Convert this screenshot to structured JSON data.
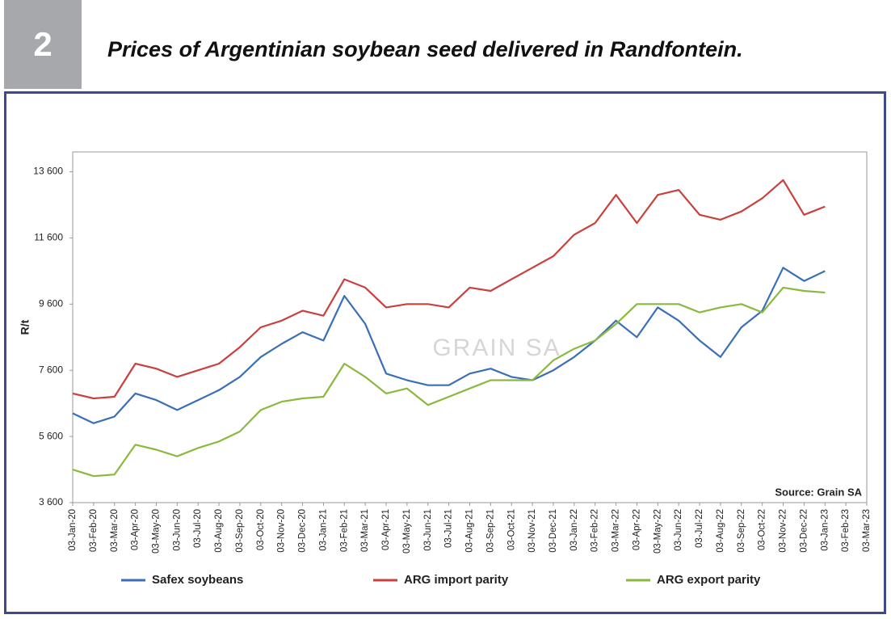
{
  "badge": "2",
  "chart_data": {
    "type": "line",
    "title": "Prices of Argentinian soybean seed delivered in Randfontein.",
    "y_label": "R/t",
    "annotation": "Source: Grain SA",
    "watermark": "GRAIN SA",
    "x": [
      "03-Jan-20",
      "03-Feb-20",
      "03-Mar-20",
      "03-Apr-20",
      "03-May-20",
      "03-Jun-20",
      "03-Jul-20",
      "03-Aug-20",
      "03-Sep-20",
      "03-Oct-20",
      "03-Nov-20",
      "03-Dec-20",
      "03-Jan-21",
      "03-Feb-21",
      "03-Mar-21",
      "03-Apr-21",
      "03-May-21",
      "03-Jun-21",
      "03-Jul-21",
      "03-Aug-21",
      "03-Sep-21",
      "03-Oct-21",
      "03-Nov-21",
      "03-Dec-21",
      "03-Jan-22",
      "03-Feb-22",
      "03-Mar-22",
      "03-Apr-22",
      "03-May-22",
      "03-Jun-22",
      "03-Jul-22",
      "03-Aug-22",
      "03-Sep-22",
      "03-Oct-22",
      "03-Nov-22",
      "03-Dec-22",
      "03-Jan-23",
      "03-Feb-23",
      "03-Mar-23"
    ],
    "series": [
      {
        "name": "Safex soybeans",
        "color": "#3a6fb7",
        "values": [
          6300,
          6000,
          6200,
          6900,
          6700,
          6400,
          6700,
          7000,
          7400,
          8000,
          8400,
          8750,
          8500,
          9850,
          9000,
          7500,
          7300,
          7150,
          7150,
          7500,
          7650,
          7400,
          7300,
          7600,
          8000,
          8500,
          9100,
          8600,
          9500,
          9100,
          8500,
          8000,
          8900,
          9400,
          10700,
          10300,
          10600,
          null,
          null
        ]
      },
      {
        "name": "ARG import parity",
        "color": "#c9403d",
        "values": [
          6900,
          6750,
          6800,
          7800,
          7650,
          7400,
          7600,
          7800,
          8300,
          8900,
          9100,
          9400,
          9250,
          10350,
          10100,
          9500,
          9600,
          9600,
          9500,
          10100,
          10000,
          10350,
          10700,
          11050,
          11700,
          12050,
          12900,
          12050,
          12900,
          13050,
          12300,
          12150,
          12400,
          12800,
          13350,
          12300,
          12550,
          null,
          null
        ]
      },
      {
        "name": "ARG export parity",
        "color": "#8bb93f",
        "values": [
          4600,
          4400,
          4450,
          5350,
          5200,
          5000,
          5250,
          5450,
          5750,
          6400,
          6650,
          6750,
          6800,
          7800,
          7400,
          6900,
          7050,
          6550,
          6800,
          7050,
          7300,
          7300,
          7300,
          7900,
          8250,
          8500,
          9000,
          9600,
          9600,
          9600,
          9350,
          9500,
          9600,
          9350,
          10100,
          10000,
          9950,
          null,
          null
        ]
      }
    ],
    "ylim": [
      3600,
      14200
    ],
    "yticks": [
      {
        "value": 3600,
        "label": "3 600"
      },
      {
        "value": 5600,
        "label": "5 600"
      },
      {
        "value": 7600,
        "label": "7 600"
      },
      {
        "value": 9600,
        "label": "9 600"
      },
      {
        "value": 11600,
        "label": "11 600"
      },
      {
        "value": 13600,
        "label": "13 600"
      }
    ],
    "grid": false,
    "legend": "bottom"
  }
}
